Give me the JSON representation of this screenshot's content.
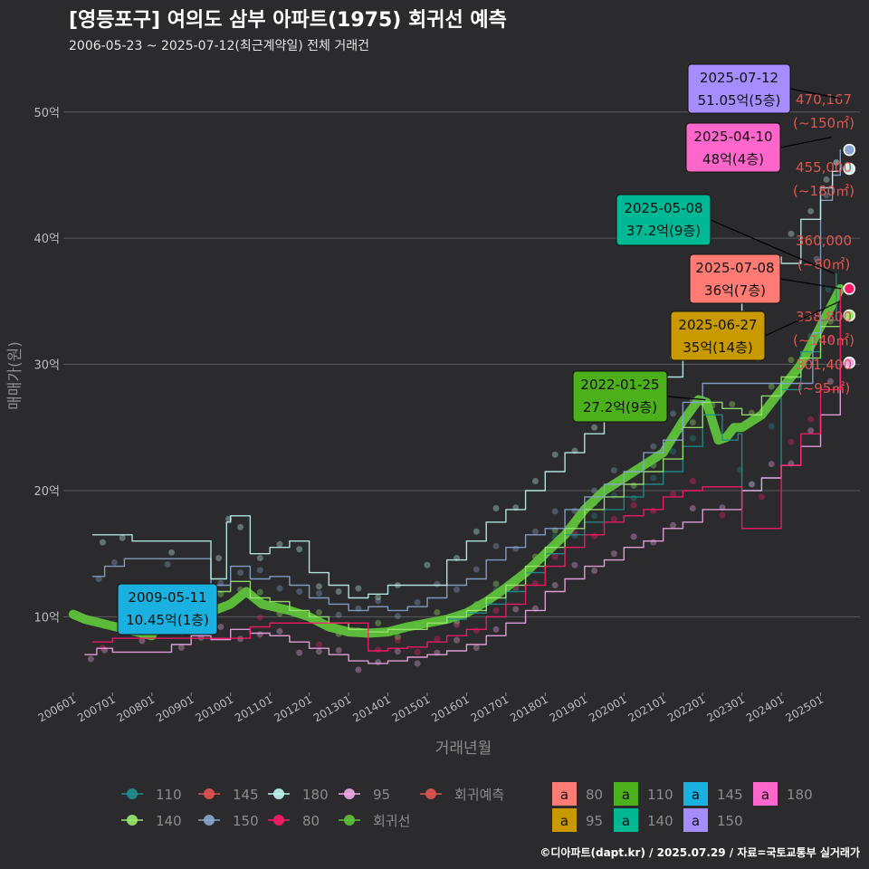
{
  "header": {
    "title": "[영등포구] 여의도 삼부 아파트(1975) 회귀선 예측",
    "subtitle": "2006-05-23 ~ 2025-07-12(최근계약일) 전체 거래건"
  },
  "credit": "©디아파트(dapt.kr) / 2025.07.29 / 자료=국토교통부 실거래가",
  "chart_data": {
    "type": "line",
    "xlabel": "거래년월",
    "ylabel": "매매가(원)",
    "x_ticks": [
      "200601",
      "200701",
      "200801",
      "200901",
      "201001",
      "201101",
      "201201",
      "201301",
      "201401",
      "201501",
      "201601",
      "201701",
      "201801",
      "201901",
      "202001",
      "202101",
      "202201",
      "202301",
      "202401",
      "202501"
    ],
    "y_ticks": [
      {
        "value": 10,
        "label": "10억"
      },
      {
        "value": 20,
        "label": "20억"
      },
      {
        "value": 30,
        "label": "30억"
      },
      {
        "value": 40,
        "label": "40억"
      },
      {
        "value": 50,
        "label": "50억"
      }
    ],
    "xlim": [
      2005.75,
      2026.0
    ],
    "ylim": [
      4.0,
      54.0
    ],
    "grid": "horizontal",
    "series": [
      {
        "name": "110",
        "color": "#1f8f8f",
        "width": 1.4,
        "x": [
          2015.5,
          2016.0,
          2016.5,
          2017.0,
          2017.5,
          2018.0,
          2018.5,
          2019.0,
          2019.5,
          2020.0,
          2020.5,
          2021.0,
          2021.5,
          2022.0,
          2022.5,
          2022.9,
          2023.0,
          2023.5,
          2024.0,
          2024.5,
          2025.0,
          2025.4
        ],
        "y": [
          9.8,
          10.3,
          11.0,
          12.0,
          13.5,
          15.0,
          16.5,
          17.5,
          18.5,
          19.5,
          20.5,
          21.5,
          23.5,
          26.0,
          24.0,
          24.5,
          20.0,
          21.0,
          28.0,
          31.0,
          33.5,
          37.2
        ]
      },
      {
        "name": "140",
        "color": "#9be86f",
        "width": 1.4,
        "x": [
          2009.5,
          2010.0,
          2010.5,
          2011.0,
          2011.5,
          2012.0,
          2012.5,
          2013.0,
          2013.5,
          2014.0,
          2014.5,
          2015.0,
          2015.5,
          2016.0,
          2016.5,
          2017.0,
          2017.5,
          2018.0,
          2018.5,
          2019.0,
          2019.5,
          2020.0,
          2020.5,
          2021.0,
          2021.5,
          2022.0,
          2022.5,
          2023.0,
          2023.5,
          2024.0,
          2024.5,
          2025.0,
          2025.5
        ],
        "y": [
          12.0,
          12.8,
          11.5,
          11.2,
          10.5,
          10.0,
          9.5,
          9.0,
          8.8,
          9.0,
          9.0,
          9.5,
          10.0,
          10.5,
          11.5,
          12.5,
          14.0,
          15.5,
          17.0,
          18.5,
          19.5,
          20.5,
          21.5,
          22.5,
          25.0,
          27.0,
          26.5,
          26.0,
          27.5,
          29.0,
          30.5,
          33.0,
          33.8
        ]
      },
      {
        "name": "150",
        "color": "#8aa6cf",
        "width": 1.4,
        "x": [
          2006.5,
          2006.8,
          2007.3,
          2009.5,
          2010.0,
          2010.5,
          2011.0,
          2011.5,
          2012.0,
          2012.5,
          2013.0,
          2013.5,
          2014.0,
          2014.5,
          2015.0,
          2015.5,
          2016.0,
          2016.5,
          2017.0,
          2017.5,
          2018.0,
          2018.5,
          2019.0,
          2019.5,
          2020.0,
          2020.5,
          2021.0,
          2021.5,
          2022.0,
          2024.8,
          2025.0,
          2025.3,
          2025.5
        ],
        "y": [
          13.2,
          14.0,
          14.6,
          12.5,
          14.0,
          13.0,
          13.2,
          12.5,
          11.5,
          11.0,
          10.5,
          10.8,
          10.5,
          10.8,
          11.5,
          12.5,
          13.0,
          14.5,
          15.5,
          16.5,
          17.0,
          18.5,
          19.5,
          20.5,
          21.5,
          23.0,
          24.0,
          27.0,
          28.5,
          32.5,
          43.0,
          45.0,
          47.0
        ]
      },
      {
        "name": "180",
        "color": "#bff5ef",
        "width": 1.4,
        "x": [
          2006.5,
          2007.0,
          2007.5,
          2009.5,
          2009.9,
          2010.0,
          2010.5,
          2011.0,
          2011.5,
          2012.0,
          2012.5,
          2013.0,
          2013.5,
          2014.0,
          2014.5,
          2015.5,
          2016.0,
          2016.5,
          2017.0,
          2017.5,
          2018.0,
          2018.5,
          2019.0,
          2019.5,
          2020.0,
          2020.5,
          2021.0,
          2021.5,
          2022.0,
          2022.5,
          2023.0,
          2023.5,
          2024.0,
          2024.5,
          2025.0,
          2025.3,
          2025.5
        ],
        "y": [
          16.5,
          16.5,
          16.0,
          13.0,
          17.5,
          18.0,
          15.0,
          15.5,
          16.0,
          13.5,
          12.5,
          11.5,
          11.8,
          12.5,
          12.5,
          14.5,
          16.0,
          17.5,
          18.5,
          20.0,
          21.5,
          23.0,
          24.5,
          25.5,
          26.5,
          28.0,
          29.0,
          31.0,
          33.0,
          33.5,
          38.0,
          38.5,
          38.0,
          41.5,
          44.0,
          45.3,
          45.5
        ]
      },
      {
        "name": "95",
        "color": "#f0a8e8",
        "width": 1.4,
        "x": [
          2006.3,
          2006.6,
          2007.0,
          2008.5,
          2009.0,
          2009.5,
          2010.0,
          2010.5,
          2011.0,
          2011.5,
          2012.0,
          2012.5,
          2013.0,
          2013.5,
          2014.0,
          2014.5,
          2015.0,
          2015.5,
          2016.0,
          2016.5,
          2017.0,
          2017.5,
          2018.0,
          2018.5,
          2019.0,
          2019.5,
          2020.0,
          2020.5,
          2021.0,
          2021.5,
          2022.0,
          2023.0,
          2023.5,
          2024.0,
          2024.5,
          2025.0,
          2025.5
        ],
        "y": [
          7.0,
          7.5,
          7.2,
          7.8,
          8.5,
          8.2,
          9.0,
          8.7,
          8.5,
          8.0,
          7.5,
          7.0,
          6.5,
          6.3,
          6.5,
          6.8,
          7.0,
          7.3,
          7.8,
          8.5,
          9.5,
          10.5,
          12.0,
          13.0,
          14.0,
          14.5,
          15.5,
          16.0,
          17.0,
          17.5,
          18.5,
          20.0,
          21.0,
          22.0,
          23.5,
          26.0,
          30.1
        ]
      },
      {
        "name": "80",
        "color": "#ff1a66",
        "width": 1.4,
        "x": [
          2006.5,
          2007.0,
          2010.5,
          2011.0,
          2013.5,
          2014.0,
          2014.5,
          2015.0,
          2015.5,
          2016.0,
          2016.5,
          2017.0,
          2017.5,
          2018.0,
          2018.5,
          2019.0,
          2019.5,
          2020.0,
          2020.5,
          2021.0,
          2021.5,
          2022.0,
          2023.0,
          2024.0,
          2024.5,
          2025.0,
          2025.5
        ],
        "y": [
          8.0,
          8.3,
          9.2,
          9.5,
          7.3,
          7.5,
          7.6,
          8.0,
          8.5,
          9.0,
          10.0,
          11.0,
          12.5,
          14.0,
          15.5,
          16.5,
          17.5,
          18.0,
          18.5,
          19.5,
          20.0,
          20.3,
          17.0,
          22.0,
          24.5,
          28.0,
          36.0
        ]
      },
      {
        "name": "회귀선",
        "color": "#5ec23a",
        "width": 10,
        "x": [
          2006.0,
          2006.3,
          2008.0,
          2008.2,
          2009.0,
          2009.5,
          2010.0,
          2010.4,
          2010.8,
          2011.5,
          2012.0,
          2012.5,
          2013.0,
          2013.5,
          2014.0,
          2014.5,
          2015.0,
          2015.5,
          2016.0,
          2016.5,
          2017.0,
          2017.5,
          2018.0,
          2018.5,
          2019.0,
          2019.5,
          2020.0,
          2020.5,
          2021.0,
          2021.5,
          2021.9,
          2022.1,
          2022.4,
          2022.6,
          2022.8,
          2023.0,
          2023.5,
          2024.0,
          2024.5,
          2025.0,
          2025.3,
          2025.5
        ],
        "y": [
          10.2,
          9.8,
          8.5,
          10.0,
          10.2,
          10.4,
          11.0,
          12.0,
          11.0,
          10.5,
          10.0,
          9.2,
          8.8,
          8.7,
          8.8,
          9.2,
          9.5,
          9.8,
          10.3,
          11.2,
          12.3,
          13.5,
          15.0,
          16.5,
          18.5,
          20.0,
          21.0,
          22.0,
          23.0,
          25.5,
          27.2,
          27.0,
          24.0,
          24.2,
          25.0,
          25.0,
          26.0,
          28.0,
          30.0,
          33.0,
          34.8,
          36.0
        ]
      }
    ],
    "regression_forecast": [
      {
        "label": "470,167",
        "area": "(~150㎡)",
        "x": 2025.5,
        "y": 47.0
      },
      {
        "label": "455,000",
        "area": "(~180㎡)",
        "x": 2025.5,
        "y": 45.5
      },
      {
        "label": "360,000",
        "area": "(~80㎡)",
        "x": 2025.5,
        "y": 36.0
      },
      {
        "label": "338,800",
        "area": "(~140㎡)",
        "x": 2025.5,
        "y": 33.88
      },
      {
        "label": "301,400",
        "area": "(~95㎡)",
        "x": 2025.5,
        "y": 30.14
      }
    ],
    "callouts": [
      {
        "date": "2009-05-11",
        "price": "10.45억(1층)",
        "x": 2009.36,
        "y": 10.45,
        "fill": "#1ab0e0"
      },
      {
        "date": "2022-01-25",
        "price": "27.2억(9층)",
        "x": 2022.07,
        "y": 27.2,
        "fill": "#4caf1c"
      },
      {
        "date": "2025-05-08",
        "price": "37.2억(9층)",
        "x": 2025.35,
        "y": 37.2,
        "fill": "#00b894"
      },
      {
        "date": "2025-07-08",
        "price": "36억(7층)",
        "x": 2025.52,
        "y": 36.0,
        "fill": "#ff7b73"
      },
      {
        "date": "2025-06-27",
        "price": "35억(14층)",
        "x": 2025.49,
        "y": 35.0,
        "fill": "#c99a00"
      },
      {
        "date": "2025-04-10",
        "price": "48억(4층)",
        "x": 2025.27,
        "y": 48.0,
        "fill": "#ff66cc"
      },
      {
        "date": "2025-07-12",
        "price": "51.05억(5층)",
        "x": 2025.53,
        "y": 51.05,
        "fill": "#a58cff"
      }
    ],
    "legend_lines": [
      {
        "name": "110",
        "color": "#1f8f8f"
      },
      {
        "name": "145",
        "color": "#e05550"
      },
      {
        "name": "180",
        "color": "#bff5ef"
      },
      {
        "name": "95",
        "color": "#f0a8e8"
      },
      {
        "name": "회귀예측",
        "color": "#e05550"
      },
      {
        "name": "140",
        "color": "#9be86f"
      },
      {
        "name": "150",
        "color": "#8aa6cf"
      },
      {
        "name": "80",
        "color": "#ff1a66"
      },
      {
        "name": "회귀선",
        "color": "#5ec23a"
      }
    ],
    "legend_boxes": [
      {
        "name": "80",
        "color": "#ff7b73"
      },
      {
        "name": "110",
        "color": "#4caf1c"
      },
      {
        "name": "145",
        "color": "#1ab0e0"
      },
      {
        "name": "180",
        "color": "#ff66cc"
      },
      {
        "name": "95",
        "color": "#c99a00"
      },
      {
        "name": "140",
        "color": "#00b894"
      },
      {
        "name": "150",
        "color": "#a58cff"
      }
    ],
    "legend_box_glyph": "a"
  }
}
